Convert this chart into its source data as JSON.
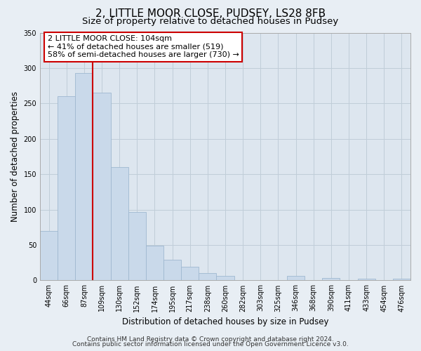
{
  "title": "2, LITTLE MOOR CLOSE, PUDSEY, LS28 8FB",
  "subtitle": "Size of property relative to detached houses in Pudsey",
  "xlabel": "Distribution of detached houses by size in Pudsey",
  "ylabel": "Number of detached properties",
  "bar_labels": [
    "44sqm",
    "66sqm",
    "87sqm",
    "109sqm",
    "130sqm",
    "152sqm",
    "174sqm",
    "195sqm",
    "217sqm",
    "238sqm",
    "260sqm",
    "282sqm",
    "303sqm",
    "325sqm",
    "346sqm",
    "368sqm",
    "390sqm",
    "411sqm",
    "433sqm",
    "454sqm",
    "476sqm"
  ],
  "bar_heights": [
    70,
    260,
    293,
    265,
    160,
    97,
    49,
    29,
    19,
    10,
    6,
    0,
    0,
    0,
    6,
    0,
    3,
    0,
    2,
    0,
    2
  ],
  "bar_color": "#c9d9ea",
  "bar_edge_color": "#9fb8d0",
  "vline_color": "#cc0000",
  "annotation_title": "2 LITTLE MOOR CLOSE: 104sqm",
  "annotation_line1": "← 41% of detached houses are smaller (519)",
  "annotation_line2": "58% of semi-detached houses are larger (730) →",
  "annotation_box_facecolor": "#ffffff",
  "annotation_box_edgecolor": "#cc0000",
  "ylim": [
    0,
    350
  ],
  "yticks": [
    0,
    50,
    100,
    150,
    200,
    250,
    300,
    350
  ],
  "footer1": "Contains HM Land Registry data © Crown copyright and database right 2024.",
  "footer2": "Contains public sector information licensed under the Open Government Licence v3.0.",
  "bg_color": "#e8eef4",
  "plot_bg_color": "#dde6ef",
  "grid_color": "#c0cdd8",
  "title_fontsize": 11,
  "subtitle_fontsize": 9.5,
  "axis_label_fontsize": 8.5,
  "tick_fontsize": 7,
  "annotation_fontsize": 8,
  "footer_fontsize": 6.5
}
